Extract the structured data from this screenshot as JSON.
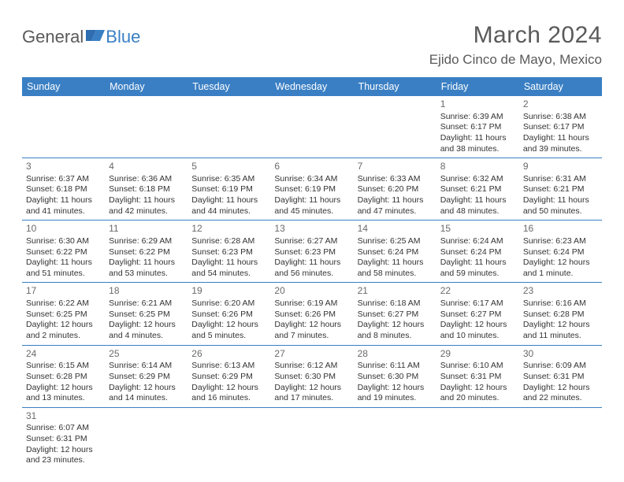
{
  "logo": {
    "part1": "General",
    "part2": "Blue"
  },
  "title": "March 2024",
  "location": "Ejido Cinco de Mayo, Mexico",
  "colors": {
    "header_bg": "#3a7fc4",
    "header_text": "#ffffff",
    "body_text": "#333333",
    "muted_text": "#6a6a6a",
    "logo_gray": "#5a5a5a",
    "logo_blue": "#3a7fc4",
    "border": "#3a7fc4",
    "background": "#ffffff"
  },
  "typography": {
    "title_fontsize": 30,
    "location_fontsize": 17,
    "dayheader_fontsize": 12.5,
    "cell_fontsize": 10.5,
    "logo_fontsize": 22
  },
  "day_headers": [
    "Sunday",
    "Monday",
    "Tuesday",
    "Wednesday",
    "Thursday",
    "Friday",
    "Saturday"
  ],
  "weeks": [
    [
      null,
      null,
      null,
      null,
      null,
      {
        "n": "1",
        "sr": "Sunrise: 6:39 AM",
        "ss": "Sunset: 6:17 PM",
        "d1": "Daylight: 11 hours",
        "d2": "and 38 minutes."
      },
      {
        "n": "2",
        "sr": "Sunrise: 6:38 AM",
        "ss": "Sunset: 6:17 PM",
        "d1": "Daylight: 11 hours",
        "d2": "and 39 minutes."
      }
    ],
    [
      {
        "n": "3",
        "sr": "Sunrise: 6:37 AM",
        "ss": "Sunset: 6:18 PM",
        "d1": "Daylight: 11 hours",
        "d2": "and 41 minutes."
      },
      {
        "n": "4",
        "sr": "Sunrise: 6:36 AM",
        "ss": "Sunset: 6:18 PM",
        "d1": "Daylight: 11 hours",
        "d2": "and 42 minutes."
      },
      {
        "n": "5",
        "sr": "Sunrise: 6:35 AM",
        "ss": "Sunset: 6:19 PM",
        "d1": "Daylight: 11 hours",
        "d2": "and 44 minutes."
      },
      {
        "n": "6",
        "sr": "Sunrise: 6:34 AM",
        "ss": "Sunset: 6:19 PM",
        "d1": "Daylight: 11 hours",
        "d2": "and 45 minutes."
      },
      {
        "n": "7",
        "sr": "Sunrise: 6:33 AM",
        "ss": "Sunset: 6:20 PM",
        "d1": "Daylight: 11 hours",
        "d2": "and 47 minutes."
      },
      {
        "n": "8",
        "sr": "Sunrise: 6:32 AM",
        "ss": "Sunset: 6:21 PM",
        "d1": "Daylight: 11 hours",
        "d2": "and 48 minutes."
      },
      {
        "n": "9",
        "sr": "Sunrise: 6:31 AM",
        "ss": "Sunset: 6:21 PM",
        "d1": "Daylight: 11 hours",
        "d2": "and 50 minutes."
      }
    ],
    [
      {
        "n": "10",
        "sr": "Sunrise: 6:30 AM",
        "ss": "Sunset: 6:22 PM",
        "d1": "Daylight: 11 hours",
        "d2": "and 51 minutes."
      },
      {
        "n": "11",
        "sr": "Sunrise: 6:29 AM",
        "ss": "Sunset: 6:22 PM",
        "d1": "Daylight: 11 hours",
        "d2": "and 53 minutes."
      },
      {
        "n": "12",
        "sr": "Sunrise: 6:28 AM",
        "ss": "Sunset: 6:23 PM",
        "d1": "Daylight: 11 hours",
        "d2": "and 54 minutes."
      },
      {
        "n": "13",
        "sr": "Sunrise: 6:27 AM",
        "ss": "Sunset: 6:23 PM",
        "d1": "Daylight: 11 hours",
        "d2": "and 56 minutes."
      },
      {
        "n": "14",
        "sr": "Sunrise: 6:25 AM",
        "ss": "Sunset: 6:24 PM",
        "d1": "Daylight: 11 hours",
        "d2": "and 58 minutes."
      },
      {
        "n": "15",
        "sr": "Sunrise: 6:24 AM",
        "ss": "Sunset: 6:24 PM",
        "d1": "Daylight: 11 hours",
        "d2": "and 59 minutes."
      },
      {
        "n": "16",
        "sr": "Sunrise: 6:23 AM",
        "ss": "Sunset: 6:24 PM",
        "d1": "Daylight: 12 hours",
        "d2": "and 1 minute."
      }
    ],
    [
      {
        "n": "17",
        "sr": "Sunrise: 6:22 AM",
        "ss": "Sunset: 6:25 PM",
        "d1": "Daylight: 12 hours",
        "d2": "and 2 minutes."
      },
      {
        "n": "18",
        "sr": "Sunrise: 6:21 AM",
        "ss": "Sunset: 6:25 PM",
        "d1": "Daylight: 12 hours",
        "d2": "and 4 minutes."
      },
      {
        "n": "19",
        "sr": "Sunrise: 6:20 AM",
        "ss": "Sunset: 6:26 PM",
        "d1": "Daylight: 12 hours",
        "d2": "and 5 minutes."
      },
      {
        "n": "20",
        "sr": "Sunrise: 6:19 AM",
        "ss": "Sunset: 6:26 PM",
        "d1": "Daylight: 12 hours",
        "d2": "and 7 minutes."
      },
      {
        "n": "21",
        "sr": "Sunrise: 6:18 AM",
        "ss": "Sunset: 6:27 PM",
        "d1": "Daylight: 12 hours",
        "d2": "and 8 minutes."
      },
      {
        "n": "22",
        "sr": "Sunrise: 6:17 AM",
        "ss": "Sunset: 6:27 PM",
        "d1": "Daylight: 12 hours",
        "d2": "and 10 minutes."
      },
      {
        "n": "23",
        "sr": "Sunrise: 6:16 AM",
        "ss": "Sunset: 6:28 PM",
        "d1": "Daylight: 12 hours",
        "d2": "and 11 minutes."
      }
    ],
    [
      {
        "n": "24",
        "sr": "Sunrise: 6:15 AM",
        "ss": "Sunset: 6:28 PM",
        "d1": "Daylight: 12 hours",
        "d2": "and 13 minutes."
      },
      {
        "n": "25",
        "sr": "Sunrise: 6:14 AM",
        "ss": "Sunset: 6:29 PM",
        "d1": "Daylight: 12 hours",
        "d2": "and 14 minutes."
      },
      {
        "n": "26",
        "sr": "Sunrise: 6:13 AM",
        "ss": "Sunset: 6:29 PM",
        "d1": "Daylight: 12 hours",
        "d2": "and 16 minutes."
      },
      {
        "n": "27",
        "sr": "Sunrise: 6:12 AM",
        "ss": "Sunset: 6:30 PM",
        "d1": "Daylight: 12 hours",
        "d2": "and 17 minutes."
      },
      {
        "n": "28",
        "sr": "Sunrise: 6:11 AM",
        "ss": "Sunset: 6:30 PM",
        "d1": "Daylight: 12 hours",
        "d2": "and 19 minutes."
      },
      {
        "n": "29",
        "sr": "Sunrise: 6:10 AM",
        "ss": "Sunset: 6:31 PM",
        "d1": "Daylight: 12 hours",
        "d2": "and 20 minutes."
      },
      {
        "n": "30",
        "sr": "Sunrise: 6:09 AM",
        "ss": "Sunset: 6:31 PM",
        "d1": "Daylight: 12 hours",
        "d2": "and 22 minutes."
      }
    ],
    [
      {
        "n": "31",
        "sr": "Sunrise: 6:07 AM",
        "ss": "Sunset: 6:31 PM",
        "d1": "Daylight: 12 hours",
        "d2": "and 23 minutes."
      },
      null,
      null,
      null,
      null,
      null,
      null
    ]
  ]
}
